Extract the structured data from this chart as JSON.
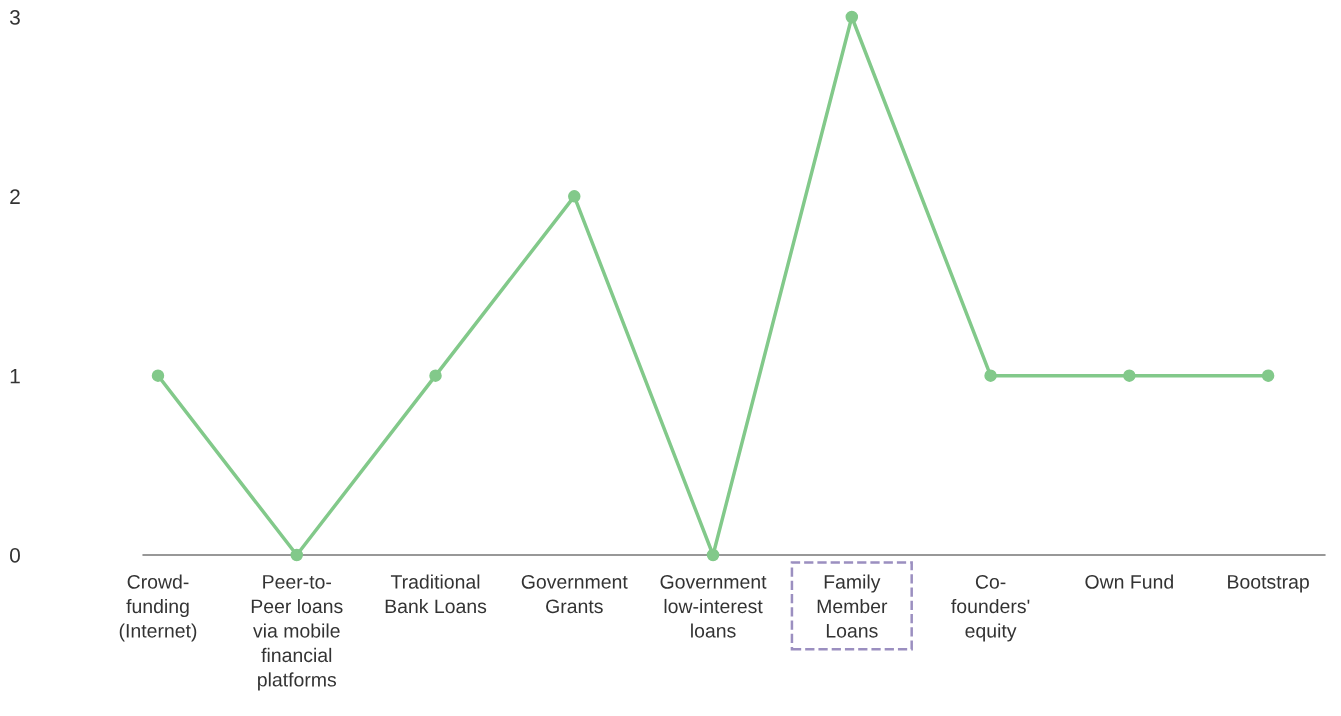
{
  "chart_data": {
    "type": "line",
    "categories": [
      "Crowd-\nfunding\n(Internet)",
      "Peer-to-\nPeer loans\nvia mobile\nfinancial\nplatforms",
      "Traditional\nBank Loans",
      "Government\nGrants",
      "Government\nlow-interest\nloans",
      "Family\nMember\nLoans",
      "Co-\nfounders'\nequity",
      "Own Fund",
      "Bootstrap"
    ],
    "series": [
      {
        "color": "#82c98a",
        "values": [
          1,
          0,
          1,
          2,
          0,
          3,
          1,
          1,
          1
        ]
      }
    ],
    "ylim": [
      0,
      3
    ],
    "yticks": [
      0,
      1,
      2,
      3
    ],
    "grid": false,
    "legend": false,
    "marker": "circle",
    "line_style": "solid"
  }
}
